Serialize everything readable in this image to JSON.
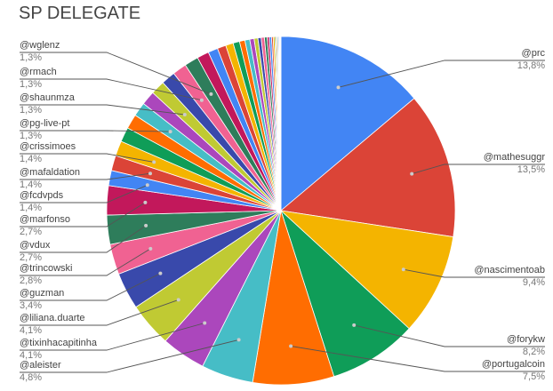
{
  "chart_data": {
    "type": "pie",
    "title": "SP DELEGATE",
    "slices": [
      {
        "label": "@prc",
        "value": 13.8,
        "display": "13,8%",
        "color": "#4285F4"
      },
      {
        "label": "@mathesuggr",
        "value": 13.5,
        "display": "13,5%",
        "color": "#DB4437"
      },
      {
        "label": "@nascimentoab",
        "value": 9.4,
        "display": "9,4%",
        "color": "#F4B400"
      },
      {
        "label": "@forykw",
        "value": 8.2,
        "display": "8,2%",
        "color": "#0F9D58"
      },
      {
        "label": "@portugalcoin",
        "value": 7.5,
        "display": "7,5%",
        "color": "#FF6D01"
      },
      {
        "label": "@aleister",
        "value": 4.8,
        "display": "4,8%",
        "color": "#46BDC6"
      },
      {
        "label": "@tixinhacapitinha",
        "value": 4.1,
        "display": "4,1%",
        "color": "#AB47BC"
      },
      {
        "label": "@liliana.duarte",
        "value": 4.1,
        "display": "4,1%",
        "color": "#C0CA33"
      },
      {
        "label": "@guzman",
        "value": 3.4,
        "display": "3,4%",
        "color": "#3949AB"
      },
      {
        "label": "@trincowski",
        "value": 2.8,
        "display": "2,8%",
        "color": "#F06292"
      },
      {
        "label": "@vdux",
        "value": 2.7,
        "display": "2,7%",
        "color": "#2E7D5B"
      },
      {
        "label": "@marfonso",
        "value": 2.7,
        "display": "2,7%",
        "color": "#C2185B"
      },
      {
        "label": "@fcdvpds",
        "value": 1.4,
        "display": "1,4%",
        "color": "#4285F4"
      },
      {
        "label": "@mafaldation",
        "value": 1.4,
        "display": "1,4%",
        "color": "#DB4437"
      },
      {
        "label": "@crissimoes",
        "value": 1.4,
        "display": "1,4%",
        "color": "#F4B400"
      },
      {
        "label": "",
        "value": 1.35,
        "display": "",
        "color": "#0F9D58"
      },
      {
        "label": "",
        "value": 1.35,
        "display": "",
        "color": "#FF6D01"
      },
      {
        "label": "@pg-live-pt",
        "value": 1.3,
        "display": "1,3%",
        "color": "#46BDC6"
      },
      {
        "label": "",
        "value": 1.3,
        "display": "",
        "color": "#AB47BC"
      },
      {
        "label": "@shaunmza",
        "value": 1.3,
        "display": "1,3%",
        "color": "#C0CA33"
      },
      {
        "label": "",
        "value": 1.3,
        "display": "",
        "color": "#3949AB"
      },
      {
        "label": "@rmach",
        "value": 1.3,
        "display": "1,3%",
        "color": "#F06292"
      },
      {
        "label": "@wglenz",
        "value": 1.3,
        "display": "1,3%",
        "color": "#2E7D5B"
      },
      {
        "label": "",
        "value": 1.1,
        "display": "",
        "color": "#C2185B"
      },
      {
        "label": "",
        "value": 0.9,
        "display": "",
        "color": "#4285F4"
      },
      {
        "label": "",
        "value": 0.8,
        "display": "",
        "color": "#DB4437"
      },
      {
        "label": "",
        "value": 0.7,
        "display": "",
        "color": "#F4B400"
      },
      {
        "label": "",
        "value": 0.6,
        "display": "",
        "color": "#0F9D58"
      },
      {
        "label": "",
        "value": 0.5,
        "display": "",
        "color": "#FF6D01"
      },
      {
        "label": "",
        "value": 0.45,
        "display": "",
        "color": "#46BDC6"
      },
      {
        "label": "",
        "value": 0.4,
        "display": "",
        "color": "#AB47BC"
      },
      {
        "label": "",
        "value": 0.35,
        "display": "",
        "color": "#C0CA33"
      },
      {
        "label": "",
        "value": 0.3,
        "display": "",
        "color": "#3949AB"
      },
      {
        "label": "",
        "value": 0.3,
        "display": "",
        "color": "#F06292"
      },
      {
        "label": "",
        "value": 0.25,
        "display": "",
        "color": "#2E7D5B"
      },
      {
        "label": "",
        "value": 0.2,
        "display": "",
        "color": "#C2185B"
      },
      {
        "label": "",
        "value": 0.2,
        "display": "",
        "color": "#4285F4"
      },
      {
        "label": "",
        "value": 0.15,
        "display": "",
        "color": "#DB4437"
      },
      {
        "label": "",
        "value": 0.15,
        "display": "",
        "color": "#F4B400"
      },
      {
        "label": "",
        "value": 0.1,
        "display": "",
        "color": "#0F9D58"
      },
      {
        "label": "",
        "value": 0.1,
        "display": "",
        "color": "#FF6D01"
      },
      {
        "label": "",
        "value": 0.1,
        "display": "",
        "color": "#46BDC6"
      },
      {
        "label": "",
        "value": 0.08,
        "display": "",
        "color": "#AB47BC"
      },
      {
        "label": "",
        "value": 0.07,
        "display": "",
        "color": "#C0CA33"
      },
      {
        "label": "",
        "value": 0.06,
        "display": "",
        "color": "#3949AB"
      },
      {
        "label": "",
        "value": 0.05,
        "display": "",
        "color": "#F06292"
      }
    ]
  }
}
